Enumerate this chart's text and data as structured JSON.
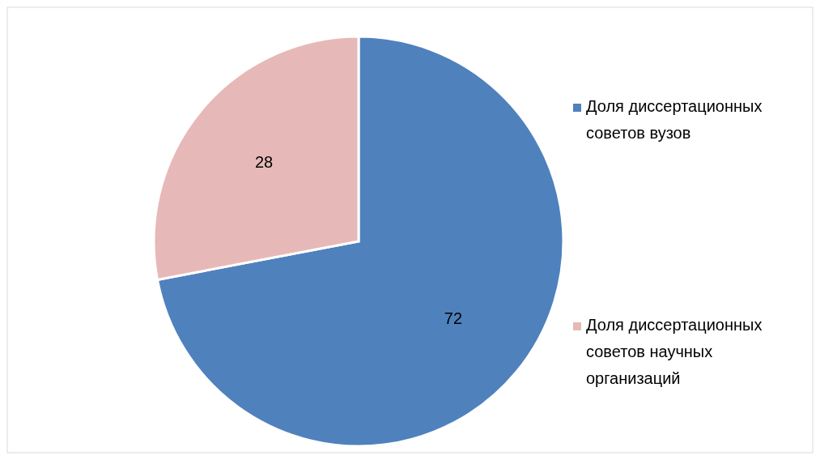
{
  "chart_data": {
    "type": "pie",
    "categories": [
      "Доля диссертационных советов вузов",
      "Доля диссертационных советов научных организаций"
    ],
    "values": [
      72,
      28
    ],
    "colors": [
      "#4f81bd",
      "#e6b9b8"
    ],
    "data_labels": true,
    "legend": "right"
  }
}
